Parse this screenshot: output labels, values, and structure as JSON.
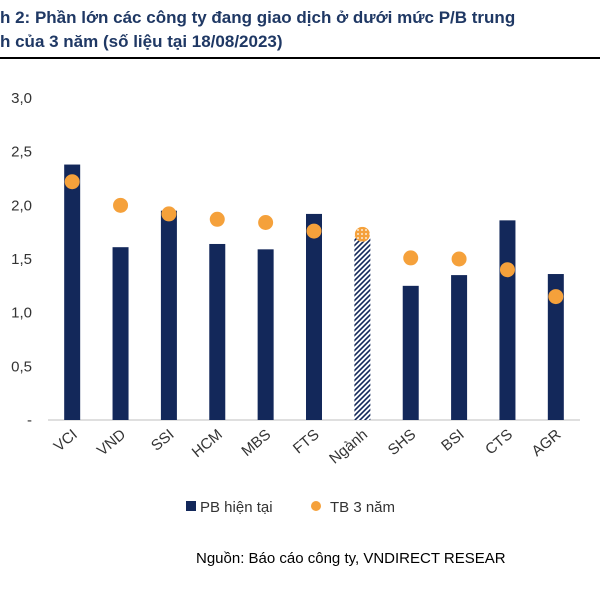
{
  "title": {
    "line1": "h 2: Phần lớn các công ty đang giao dịch ở dưới mức P/B trung",
    "line2": "h của 3 năm (số liệu tại 18/08/2023)"
  },
  "source": "Nguồn: Báo cáo công ty, VNDIRECT RESEAR",
  "colors": {
    "bar": "#13285a",
    "dot": "#f5a13b",
    "highlight_pattern": "#13285a",
    "axis": "#bfbfbf"
  },
  "chart_data": {
    "type": "bar",
    "categories": [
      "VCI",
      "VND",
      "SSI",
      "HCM",
      "MBS",
      "FTS",
      "Ngành",
      "SHS",
      "BSI",
      "CTS",
      "AGR"
    ],
    "y_tick_labels": [
      "-",
      "0,5",
      "1,0",
      "1,5",
      "2,0",
      "2,5",
      "3,0"
    ],
    "ylim": [
      0,
      3.0
    ],
    "series": [
      {
        "name": "PB hiện tại",
        "kind": "bar",
        "values": [
          2.38,
          1.61,
          1.95,
          1.64,
          1.59,
          1.92,
          1.71,
          1.25,
          1.35,
          1.86,
          1.36
        ],
        "pattern_category": "Ngành"
      },
      {
        "name": "TB 3 năm",
        "kind": "dot",
        "values": [
          2.22,
          2.0,
          1.92,
          1.87,
          1.84,
          1.76,
          1.73,
          1.51,
          1.5,
          1.4,
          1.15
        ]
      }
    ],
    "legend_position": "bottom"
  }
}
